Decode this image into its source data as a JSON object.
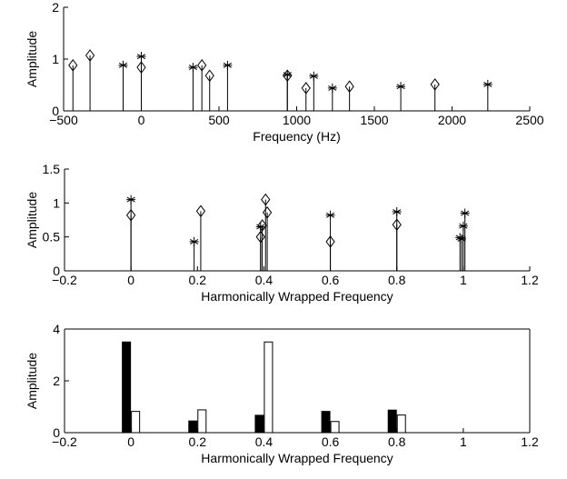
{
  "chart_data": [
    {
      "type": "stem",
      "xlabel": "Frequency (Hz)",
      "ylabel": "Amplitude",
      "xlim": [
        -500,
        2500
      ],
      "xticks": [
        {
          "value": -500,
          "label": "−500"
        },
        0,
        500,
        1000,
        1500,
        2000,
        2500
      ],
      "ylim": [
        0,
        2
      ],
      "yticks": [
        0,
        1,
        2
      ],
      "box": false,
      "series": [
        {
          "marker": "diamond",
          "color": "#000000",
          "x": [
            -440,
            -330,
            0,
            390,
            440,
            940,
            1060,
            1340,
            1890
          ],
          "values": [
            0.88,
            1.07,
            0.84,
            0.88,
            0.68,
            0.68,
            0.44,
            0.47,
            0.51
          ]
        },
        {
          "marker": "asterisk",
          "color": "#000000",
          "x": [
            -117,
            0,
            333,
            555,
            940,
            1110,
            1230,
            1670,
            2230
          ],
          "values": [
            0.88,
            1.05,
            0.84,
            0.88,
            0.7,
            0.67,
            0.44,
            0.47,
            0.51
          ]
        }
      ]
    },
    {
      "type": "stem",
      "xlabel": "Harmonically Wrapped Frequency",
      "ylabel": "Amplitude",
      "xlim": [
        -0.2,
        1.2
      ],
      "xticks": [
        {
          "value": -0.2,
          "label": "−0.2"
        },
        0,
        0.2,
        0.4,
        0.6,
        0.8,
        1,
        1.2
      ],
      "ylim": [
        0,
        1.5
      ],
      "yticks": [
        0,
        0.5,
        1,
        1.5
      ],
      "box": false,
      "series": [
        {
          "marker": "diamond",
          "color": "#000000",
          "x": [
            0,
            0.21,
            0.39,
            0.395,
            0.405,
            0.41,
            0.6,
            0.8
          ],
          "values": [
            0.82,
            0.88,
            0.5,
            0.67,
            1.05,
            0.86,
            0.43,
            0.68
          ]
        },
        {
          "marker": "asterisk",
          "color": "#000000",
          "x": [
            0,
            0.19,
            0.39,
            0.6,
            0.8,
            0.99,
            0.995,
            1.0,
            1.005
          ],
          "values": [
            1.05,
            0.43,
            0.65,
            0.82,
            0.87,
            0.49,
            0.47,
            0.66,
            0.85
          ]
        }
      ]
    },
    {
      "type": "bar",
      "xlabel": "Harmonically Wrapped Frequency",
      "ylabel": "Amplitude",
      "xlim": [
        -0.2,
        1.2
      ],
      "xticks": [
        {
          "value": -0.2,
          "label": "−0.2"
        },
        0,
        0.2,
        0.4,
        0.6,
        0.8,
        1,
        1.2
      ],
      "ylim": [
        0,
        4
      ],
      "yticks": [
        0,
        2,
        4
      ],
      "box": true,
      "x": [
        0,
        0.2,
        0.4,
        0.6,
        0.8
      ],
      "series": [
        {
          "color": "#000000",
          "values": [
            3.5,
            0.45,
            0.67,
            0.82,
            0.87
          ]
        },
        {
          "color": "#ffffff",
          "values": [
            0.82,
            0.88,
            3.5,
            0.43,
            0.68
          ]
        }
      ]
    }
  ]
}
